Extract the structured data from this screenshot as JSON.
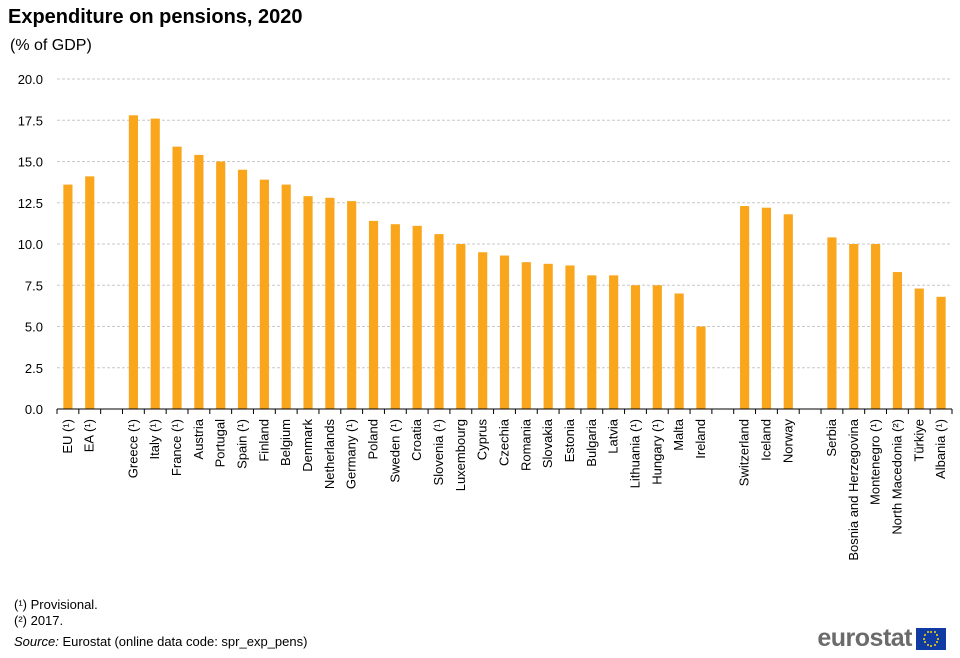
{
  "title": "Expenditure on pensions, 2020",
  "subtitle": "(% of GDP)",
  "footnotes": [
    "(¹) Provisional.",
    "(²) 2017."
  ],
  "source_label": "Source:",
  "source_text": "Eurostat (online data code: spr_exp_pens)",
  "logo_text": "eurostat",
  "colors": {
    "bar": "#f9a61c",
    "grid": "#c8c8c8",
    "axis": "#000000"
  },
  "chart_data": {
    "type": "bar",
    "title": "Expenditure on pensions, 2020",
    "subtitle": "(% of GDP)",
    "ylim": [
      0,
      20
    ],
    "yticks": [
      "0.0",
      "2.5",
      "5.0",
      "7.5",
      "10.0",
      "12.5",
      "15.0",
      "17.5",
      "20.0"
    ],
    "grid": true,
    "groups": [
      {
        "categories": [
          "EU (¹)",
          "EA (¹)"
        ],
        "values": [
          13.6,
          14.1
        ]
      },
      {
        "categories": [
          "Greece (¹)",
          "Italy (¹)",
          "France (¹)",
          "Austria",
          "Portugal",
          "Spain (¹)",
          "Finland",
          "Belgium",
          "Denmark",
          "Netherlands",
          "Germany (¹)",
          "Poland",
          "Sweden (¹)",
          "Croatia",
          "Slovenia (¹)",
          "Luxembourg",
          "Cyprus",
          "Czechia",
          "Romania",
          "Slovakia",
          "Estonia",
          "Bulgaria",
          "Latvia",
          "Lithuania (¹)",
          "Hungary (¹)",
          "Malta",
          "Ireland"
        ],
        "values": [
          17.8,
          17.6,
          15.9,
          15.4,
          15.0,
          14.5,
          13.9,
          13.6,
          12.9,
          12.8,
          12.6,
          11.4,
          11.2,
          11.1,
          10.6,
          10.0,
          9.5,
          9.3,
          8.9,
          8.8,
          8.7,
          8.1,
          8.1,
          7.5,
          7.5,
          7.0,
          5.0
        ]
      },
      {
        "categories": [
          "Switzerland",
          "Iceland",
          "Norway"
        ],
        "values": [
          12.3,
          12.2,
          11.8
        ]
      },
      {
        "categories": [
          "Serbia",
          "Bosnia and Herzegovina",
          "Montenegro (¹)",
          "North Macedonia (²)",
          "Türkiye",
          "Albania (¹)"
        ],
        "values": [
          10.4,
          10.0,
          10.0,
          8.3,
          7.3,
          6.8
        ]
      }
    ]
  }
}
